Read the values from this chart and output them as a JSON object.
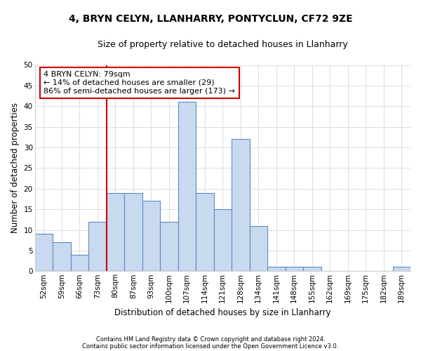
{
  "title": "4, BRYN CELYN, LLANHARRY, PONTYCLUN, CF72 9ZE",
  "subtitle": "Size of property relative to detached houses in Llanharry",
  "xlabel": "Distribution of detached houses by size in Llanharry",
  "ylabel": "Number of detached properties",
  "categories": [
    "52sqm",
    "59sqm",
    "66sqm",
    "73sqm",
    "80sqm",
    "87sqm",
    "93sqm",
    "100sqm",
    "107sqm",
    "114sqm",
    "121sqm",
    "128sqm",
    "134sqm",
    "141sqm",
    "148sqm",
    "155sqm",
    "162sqm",
    "169sqm",
    "175sqm",
    "182sqm",
    "189sqm"
  ],
  "values": [
    9,
    7,
    4,
    12,
    19,
    19,
    17,
    12,
    41,
    19,
    15,
    32,
    11,
    1,
    1,
    1,
    0,
    0,
    0,
    0,
    1
  ],
  "bar_color": "#c9d9f0",
  "bar_edge_color": "#5b8bc9",
  "bar_linewidth": 0.8,
  "ylim": [
    0,
    50
  ],
  "yticks": [
    0,
    5,
    10,
    15,
    20,
    25,
    30,
    35,
    40,
    45,
    50
  ],
  "marker_color": "#cc0000",
  "annotation_line1": "4 BRYN CELYN: 79sqm",
  "annotation_line2": "← 14% of detached houses are smaller (29)",
  "annotation_line3": "86% of semi-detached houses are larger (173) →",
  "annotation_box_color": "#ffffff",
  "annotation_box_edge": "#cc0000",
  "footnote1": "Contains HM Land Registry data © Crown copyright and database right 2024.",
  "footnote2": "Contains public sector information licensed under the Open Government Licence v3.0.",
  "background_color": "#ffffff",
  "grid_color": "#d0d0d0",
  "title_fontsize": 10,
  "subtitle_fontsize": 9,
  "axis_label_fontsize": 8.5,
  "tick_fontsize": 7.5,
  "annotation_fontsize": 8,
  "footnote_fontsize": 6
}
